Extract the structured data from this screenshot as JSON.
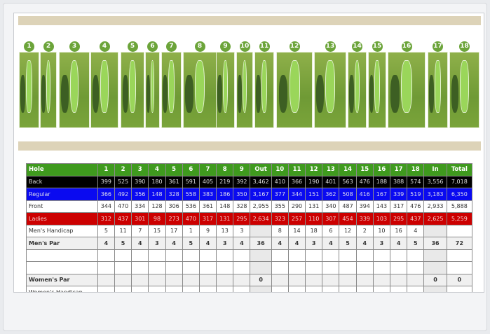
{
  "holes_map": {
    "numbers": [
      "1",
      "2",
      "3",
      "4",
      "5",
      "6",
      "7",
      "8",
      "9",
      "10",
      "11",
      "12",
      "13",
      "14",
      "15",
      "16",
      "17",
      "18"
    ]
  },
  "scorecard": {
    "headers": [
      "Hole",
      "1",
      "2",
      "3",
      "4",
      "5",
      "6",
      "7",
      "8",
      "9",
      "Out",
      "10",
      "11",
      "12",
      "13",
      "14",
      "15",
      "16",
      "17",
      "18",
      "In",
      "Total"
    ],
    "rows": [
      {
        "label": "Back",
        "values": [
          "399",
          "525",
          "390",
          "180",
          "361",
          "591",
          "405",
          "219",
          "392",
          "3,462",
          "410",
          "366",
          "190",
          "401",
          "563",
          "476",
          "188",
          "388",
          "574",
          "3,556",
          "7,018"
        ]
      },
      {
        "label": "Regular",
        "values": [
          "366",
          "492",
          "356",
          "148",
          "328",
          "558",
          "383",
          "186",
          "350",
          "3,167",
          "377",
          "344",
          "151",
          "362",
          "508",
          "416",
          "167",
          "339",
          "519",
          "3,183",
          "6,350"
        ]
      },
      {
        "label": "Front",
        "values": [
          "344",
          "470",
          "334",
          "128",
          "306",
          "536",
          "361",
          "148",
          "328",
          "2,955",
          "355",
          "290",
          "131",
          "340",
          "487",
          "394",
          "143",
          "317",
          "476",
          "2,933",
          "5,888"
        ]
      },
      {
        "label": "Ladies",
        "values": [
          "312",
          "437",
          "301",
          "98",
          "273",
          "470",
          "317",
          "131",
          "295",
          "2,634",
          "323",
          "257",
          "110",
          "307",
          "454",
          "339",
          "103",
          "295",
          "437",
          "2,625",
          "5,259"
        ]
      },
      {
        "label": "Men's Handicap",
        "values": [
          "5",
          "11",
          "7",
          "15",
          "17",
          "1",
          "9",
          "13",
          "3",
          "",
          "8",
          "14",
          "18",
          "6",
          "12",
          "2",
          "10",
          "16",
          "4",
          "",
          ""
        ]
      },
      {
        "label": "Men's Par",
        "values": [
          "4",
          "5",
          "4",
          "3",
          "4",
          "5",
          "4",
          "3",
          "4",
          "36",
          "4",
          "4",
          "3",
          "4",
          "5",
          "4",
          "3",
          "4",
          "5",
          "36",
          "72"
        ]
      },
      {
        "label": "",
        "values": [
          "",
          "",
          "",
          "",
          "",
          "",
          "",
          "",
          "",
          "",
          "",
          "",
          "",
          "",
          "",
          "",
          "",
          "",
          "",
          "",
          ""
        ]
      },
      {
        "label": "",
        "values": [
          "",
          "",
          "",
          "",
          "",
          "",
          "",
          "",
          "",
          "",
          "",
          "",
          "",
          "",
          "",
          "",
          "",
          "",
          "",
          "",
          ""
        ]
      },
      {
        "label": "Women's Par",
        "values": [
          "",
          "",
          "",
          "",
          "",
          "",
          "",
          "",
          "",
          "0",
          "",
          "",
          "",
          "",
          "",
          "",
          "",
          "",
          "",
          "0",
          "0"
        ]
      },
      {
        "label": "Women's Handicap",
        "values": [
          "",
          "",
          "",
          "",
          "",
          "",
          "",
          "",
          "",
          "",
          "",
          "",
          "",
          "",
          "",
          "",
          "",
          "",
          "",
          "",
          ""
        ]
      }
    ]
  }
}
